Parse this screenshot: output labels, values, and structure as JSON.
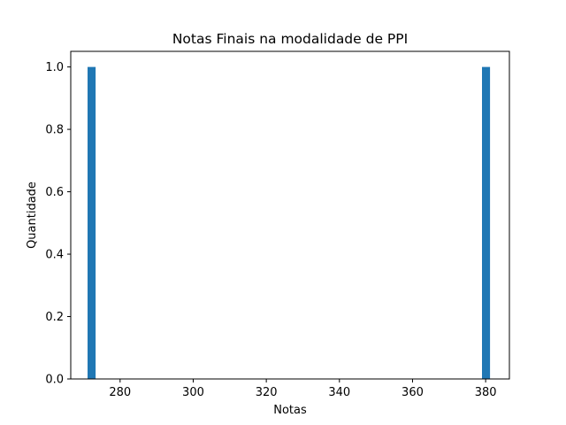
{
  "chart_data": {
    "type": "bar",
    "title": "Notas Finais na modalidade de PPI",
    "xlabel": "Notas",
    "ylabel": "Quantidade",
    "bar_color": "#1f77b4",
    "xlim": [
      266.5,
      386.5
    ],
    "ylim": [
      0,
      1.05
    ],
    "bin_width": 2.2,
    "bins": [
      {
        "x": 272.2,
        "value": 1
      },
      {
        "x": 380.1,
        "value": 1
      }
    ],
    "xticks": [
      280,
      300,
      320,
      340,
      360,
      380
    ],
    "xtick_labels": [
      "280",
      "300",
      "320",
      "340",
      "360",
      "380"
    ],
    "yticks": [
      0.0,
      0.2,
      0.4,
      0.6,
      0.8,
      1.0
    ],
    "ytick_labels": [
      "0.0",
      "0.2",
      "0.4",
      "0.6",
      "0.8",
      "1.0"
    ],
    "grid": false,
    "legend": "none"
  }
}
